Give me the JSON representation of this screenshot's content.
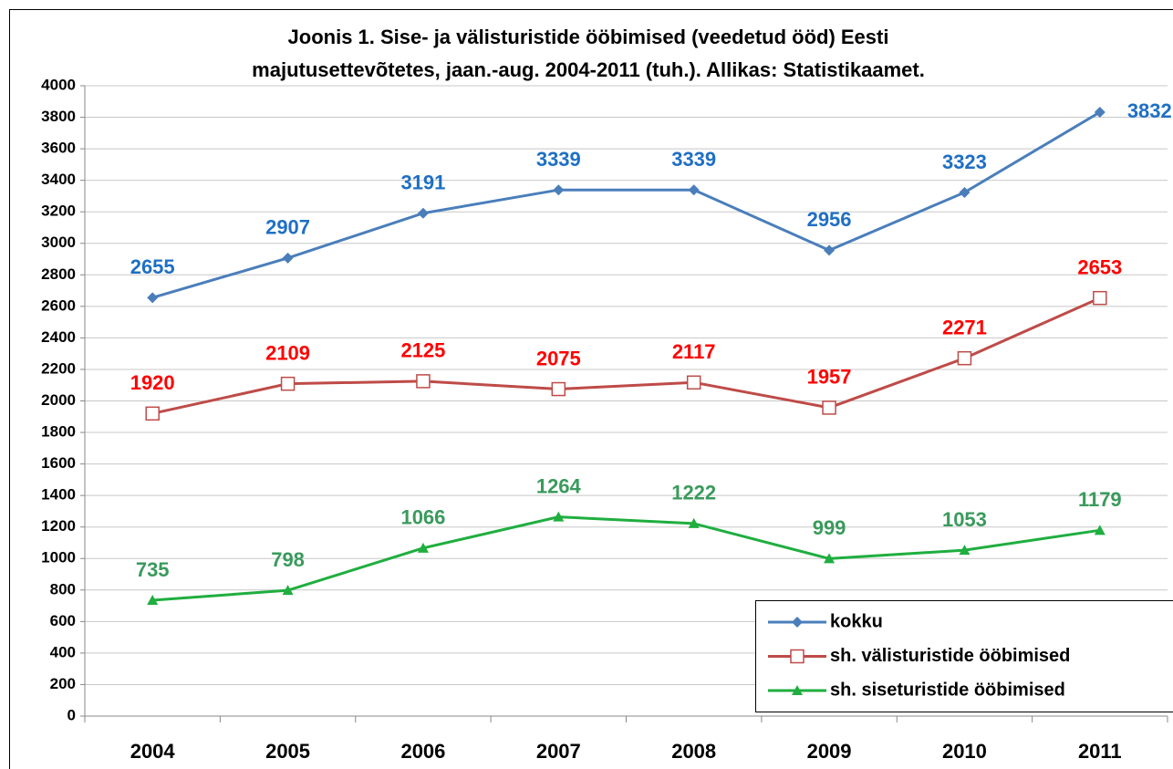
{
  "chart_data": {
    "type": "line",
    "title": [
      "Joonis 1. Sise- ja välisturistide ööbimised (veedetud ööd) Eesti",
      "majutusettevõtetes, jaan.-aug. 2004-2011 (tuh.).  Allikas: Statistikaamet."
    ],
    "categories": [
      "2004",
      "2005",
      "2006",
      "2007",
      "2008",
      "2009",
      "2010",
      "2011"
    ],
    "series": [
      {
        "name": "kokku",
        "color": "#4a7ebb",
        "label_color": "#1f6fc5",
        "marker": "diamond",
        "values": [
          2655,
          2907,
          3191,
          3339,
          3339,
          2956,
          3323,
          3832
        ]
      },
      {
        "name": "sh. välisturistide ööbimised",
        "color": "#be4b48",
        "label_color": "#ff0000",
        "marker": "square-open",
        "values": [
          1920,
          2109,
          2125,
          2075,
          2117,
          1957,
          2271,
          2653
        ]
      },
      {
        "name": "sh. siseturistide ööbimised",
        "color": "#1fae3f",
        "label_color": "#3a9a5c",
        "marker": "triangle",
        "values": [
          735,
          798,
          1066,
          1264,
          1222,
          999,
          1053,
          1179
        ]
      }
    ],
    "ylim": [
      0,
      4000
    ],
    "yticks": [
      0,
      200,
      400,
      600,
      800,
      1000,
      1200,
      1400,
      1600,
      1800,
      2000,
      2200,
      2400,
      2600,
      2800,
      3000,
      3200,
      3400,
      3600,
      3800,
      4000
    ],
    "grid": true,
    "legend": "lower right"
  }
}
